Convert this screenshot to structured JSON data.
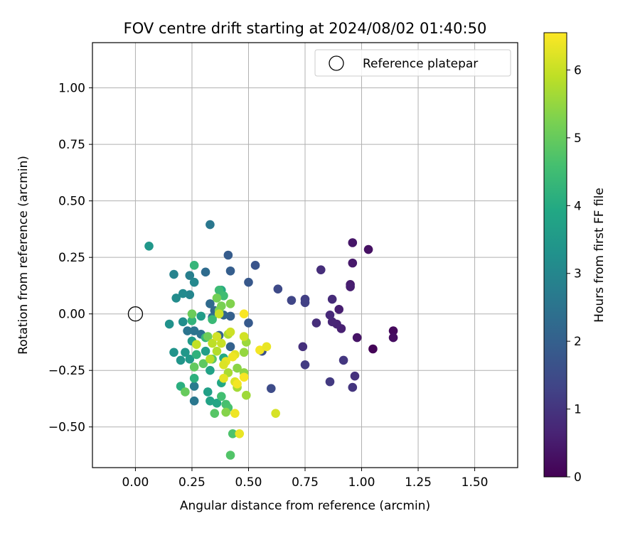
{
  "chart_data": {
    "type": "scatter",
    "title": "FOV centre drift starting at 2024/08/02 01:40:50",
    "xlabel": "Angular distance from reference (arcmin)",
    "ylabel": "Rotation from reference (arcmin)",
    "xlim": [
      -0.19,
      1.69
    ],
    "ylim": [
      -0.68,
      1.2
    ],
    "xticks": [
      0.0,
      0.25,
      0.5,
      0.75,
      1.0,
      1.25,
      1.5
    ],
    "xtick_labels": [
      "0.00",
      "0.25",
      "0.50",
      "0.75",
      "1.00",
      "1.25",
      "1.50"
    ],
    "yticks": [
      -0.5,
      -0.25,
      0.0,
      0.25,
      0.5,
      0.75,
      1.0
    ],
    "ytick_labels": [
      "−0.50",
      "−0.25",
      "0.00",
      "0.25",
      "0.50",
      "0.75",
      "1.00"
    ],
    "grid": true,
    "colormap": "viridis",
    "colorbar": {
      "label": "Hours from first FF file",
      "range": [
        0,
        6.55
      ],
      "ticks": [
        0,
        1,
        2,
        3,
        4,
        5,
        6
      ],
      "tick_labels": [
        "0",
        "1",
        "2",
        "3",
        "4",
        "5",
        "6"
      ]
    },
    "legend": {
      "position": "top-right",
      "entries": [
        {
          "label": "Reference platepar",
          "marker": "open-circle"
        }
      ]
    },
    "reference_point": {
      "x": 0.0,
      "y": 0.0
    },
    "points": [
      {
        "x": 1.05,
        "y": -0.155,
        "c": 0.05
      },
      {
        "x": 1.14,
        "y": -0.075,
        "c": 0.15
      },
      {
        "x": 1.14,
        "y": -0.105,
        "c": 0.25
      },
      {
        "x": 1.03,
        "y": 0.285,
        "c": 0.3
      },
      {
        "x": 0.98,
        "y": -0.105,
        "c": 0.35
      },
      {
        "x": 0.96,
        "y": 0.315,
        "c": 0.4
      },
      {
        "x": 0.96,
        "y": 0.225,
        "c": 0.45
      },
      {
        "x": 0.95,
        "y": 0.13,
        "c": 0.5
      },
      {
        "x": 0.95,
        "y": 0.12,
        "c": 0.55
      },
      {
        "x": 0.9,
        "y": 0.02,
        "c": 0.55
      },
      {
        "x": 0.91,
        "y": -0.065,
        "c": 0.6
      },
      {
        "x": 0.89,
        "y": -0.045,
        "c": 0.65
      },
      {
        "x": 0.87,
        "y": -0.035,
        "c": 0.7
      },
      {
        "x": 0.86,
        "y": -0.005,
        "c": 0.75
      },
      {
        "x": 0.87,
        "y": 0.065,
        "c": 0.8
      },
      {
        "x": 0.82,
        "y": 0.195,
        "c": 0.85
      },
      {
        "x": 0.8,
        "y": -0.04,
        "c": 0.85
      },
      {
        "x": 0.74,
        "y": -0.145,
        "c": 0.9
      },
      {
        "x": 0.97,
        "y": -0.275,
        "c": 0.95
      },
      {
        "x": 0.96,
        "y": -0.325,
        "c": 1.0
      },
      {
        "x": 0.92,
        "y": -0.205,
        "c": 1.05
      },
      {
        "x": 0.86,
        "y": -0.3,
        "c": 1.1
      },
      {
        "x": 0.75,
        "y": -0.225,
        "c": 1.15
      },
      {
        "x": 0.75,
        "y": 0.065,
        "c": 1.2
      },
      {
        "x": 0.75,
        "y": 0.05,
        "c": 1.25
      },
      {
        "x": 0.69,
        "y": 0.06,
        "c": 1.35
      },
      {
        "x": 0.63,
        "y": 0.11,
        "c": 1.45
      },
      {
        "x": 0.6,
        "y": -0.33,
        "c": 1.5
      },
      {
        "x": 0.56,
        "y": -0.165,
        "c": 1.6
      },
      {
        "x": 0.53,
        "y": 0.215,
        "c": 1.7
      },
      {
        "x": 0.5,
        "y": 0.14,
        "c": 1.8
      },
      {
        "x": 0.5,
        "y": -0.04,
        "c": 1.85
      },
      {
        "x": 0.41,
        "y": 0.26,
        "c": 1.9
      },
      {
        "x": 0.42,
        "y": 0.19,
        "c": 1.95
      },
      {
        "x": 0.42,
        "y": -0.01,
        "c": 2.0
      },
      {
        "x": 0.42,
        "y": -0.145,
        "c": 2.05
      },
      {
        "x": 0.37,
        "y": -0.095,
        "c": 2.1
      },
      {
        "x": 0.39,
        "y": -0.005,
        "c": 2.15
      },
      {
        "x": 0.35,
        "y": 0.015,
        "c": 2.2
      },
      {
        "x": 0.33,
        "y": 0.045,
        "c": 2.25
      },
      {
        "x": 0.31,
        "y": 0.185,
        "c": 2.3
      },
      {
        "x": 0.33,
        "y": 0.395,
        "c": 2.6
      },
      {
        "x": 0.34,
        "y": -0.015,
        "c": 2.4
      },
      {
        "x": 0.29,
        "y": -0.09,
        "c": 2.45
      },
      {
        "x": 0.26,
        "y": -0.075,
        "c": 2.5
      },
      {
        "x": 0.23,
        "y": -0.075,
        "c": 2.55
      },
      {
        "x": 0.26,
        "y": -0.385,
        "c": 2.6
      },
      {
        "x": 0.26,
        "y": -0.32,
        "c": 2.7
      },
      {
        "x": 0.24,
        "y": 0.17,
        "c": 2.8
      },
      {
        "x": 0.17,
        "y": 0.175,
        "c": 2.9
      },
      {
        "x": 0.24,
        "y": 0.085,
        "c": 2.95
      },
      {
        "x": 0.26,
        "y": 0.14,
        "c": 3.05
      },
      {
        "x": 0.21,
        "y": 0.09,
        "c": 3.1
      },
      {
        "x": 0.18,
        "y": 0.07,
        "c": 3.15
      },
      {
        "x": 0.21,
        "y": -0.035,
        "c": 3.2
      },
      {
        "x": 0.15,
        "y": -0.045,
        "c": 3.3
      },
      {
        "x": 0.17,
        "y": -0.17,
        "c": 3.35
      },
      {
        "x": 0.2,
        "y": -0.205,
        "c": 3.4
      },
      {
        "x": 0.22,
        "y": -0.17,
        "c": 3.45
      },
      {
        "x": 0.24,
        "y": -0.2,
        "c": 3.5
      },
      {
        "x": 0.25,
        "y": -0.12,
        "c": 3.55
      },
      {
        "x": 0.29,
        "y": -0.01,
        "c": 3.6
      },
      {
        "x": 0.31,
        "y": -0.165,
        "c": 3.65
      },
      {
        "x": 0.32,
        "y": -0.345,
        "c": 3.7
      },
      {
        "x": 0.33,
        "y": -0.25,
        "c": 3.75
      },
      {
        "x": 0.33,
        "y": -0.385,
        "c": 3.8
      },
      {
        "x": 0.36,
        "y": -0.395,
        "c": 3.85
      },
      {
        "x": 0.38,
        "y": -0.305,
        "c": 3.9
      },
      {
        "x": 0.39,
        "y": -0.195,
        "c": 3.95
      },
      {
        "x": 0.38,
        "y": 0.105,
        "c": 4.0
      },
      {
        "x": 0.06,
        "y": 0.3,
        "c": 3.45
      },
      {
        "x": 0.2,
        "y": -0.32,
        "c": 4.1
      },
      {
        "x": 0.26,
        "y": -0.285,
        "c": 4.15
      },
      {
        "x": 0.27,
        "y": -0.18,
        "c": 4.2
      },
      {
        "x": 0.25,
        "y": -0.03,
        "c": 4.25
      },
      {
        "x": 0.26,
        "y": 0.215,
        "c": 4.3
      },
      {
        "x": 0.31,
        "y": -0.105,
        "c": 4.35
      },
      {
        "x": 0.34,
        "y": -0.025,
        "c": 4.4
      },
      {
        "x": 0.37,
        "y": 0.105,
        "c": 4.45
      },
      {
        "x": 0.39,
        "y": 0.08,
        "c": 4.5
      },
      {
        "x": 0.38,
        "y": -0.365,
        "c": 4.55
      },
      {
        "x": 0.4,
        "y": -0.4,
        "c": 4.6
      },
      {
        "x": 0.41,
        "y": -0.415,
        "c": 4.65
      },
      {
        "x": 0.43,
        "y": -0.53,
        "c": 4.7
      },
      {
        "x": 0.42,
        "y": -0.625,
        "c": 4.75
      },
      {
        "x": 0.35,
        "y": -0.44,
        "c": 4.8
      },
      {
        "x": 0.34,
        "y": -0.2,
        "c": 4.85
      },
      {
        "x": 0.3,
        "y": -0.22,
        "c": 4.9
      },
      {
        "x": 0.26,
        "y": -0.235,
        "c": 4.95
      },
      {
        "x": 0.22,
        "y": -0.345,
        "c": 5.0
      },
      {
        "x": 0.25,
        "y": 0.0,
        "c": 5.05
      },
      {
        "x": 0.32,
        "y": -0.1,
        "c": 5.1
      },
      {
        "x": 0.36,
        "y": 0.07,
        "c": 5.15
      },
      {
        "x": 0.38,
        "y": 0.035,
        "c": 5.2
      },
      {
        "x": 0.37,
        "y": 0.015,
        "c": 5.25
      },
      {
        "x": 0.42,
        "y": 0.045,
        "c": 5.3
      },
      {
        "x": 0.4,
        "y": -0.435,
        "c": 5.35
      },
      {
        "x": 0.45,
        "y": -0.24,
        "c": 5.4
      },
      {
        "x": 0.48,
        "y": -0.26,
        "c": 5.45
      },
      {
        "x": 0.48,
        "y": -0.17,
        "c": 5.5
      },
      {
        "x": 0.49,
        "y": -0.125,
        "c": 5.55
      },
      {
        "x": 0.49,
        "y": -0.36,
        "c": 5.6
      },
      {
        "x": 0.45,
        "y": -0.325,
        "c": 5.65
      },
      {
        "x": 0.41,
        "y": -0.26,
        "c": 5.7
      },
      {
        "x": 0.41,
        "y": -0.09,
        "c": 5.75
      },
      {
        "x": 0.36,
        "y": -0.165,
        "c": 5.8
      },
      {
        "x": 0.33,
        "y": -0.2,
        "c": 5.85
      },
      {
        "x": 0.34,
        "y": -0.13,
        "c": 5.9
      },
      {
        "x": 0.27,
        "y": -0.135,
        "c": 5.95
      },
      {
        "x": 0.38,
        "y": -0.13,
        "c": 6.0
      },
      {
        "x": 0.42,
        "y": -0.08,
        "c": 6.05
      },
      {
        "x": 0.48,
        "y": -0.1,
        "c": 6.1
      },
      {
        "x": 0.62,
        "y": -0.44,
        "c": 6.15
      },
      {
        "x": 0.44,
        "y": -0.3,
        "c": 6.2
      },
      {
        "x": 0.44,
        "y": -0.18,
        "c": 6.25
      },
      {
        "x": 0.4,
        "y": -0.21,
        "c": 6.3
      },
      {
        "x": 0.46,
        "y": -0.53,
        "c": 6.35
      },
      {
        "x": 0.44,
        "y": -0.44,
        "c": 6.4
      },
      {
        "x": 0.45,
        "y": -0.31,
        "c": 6.45
      },
      {
        "x": 0.48,
        "y": -0.28,
        "c": 6.5
      },
      {
        "x": 0.48,
        "y": 0.0,
        "c": 6.5
      },
      {
        "x": 0.55,
        "y": -0.16,
        "c": 6.45
      },
      {
        "x": 0.58,
        "y": -0.145,
        "c": 6.35
      },
      {
        "x": 0.39,
        "y": -0.225,
        "c": 6.2
      },
      {
        "x": 0.39,
        "y": -0.285,
        "c": 6.3
      },
      {
        "x": 0.43,
        "y": -0.19,
        "c": 6.4
      },
      {
        "x": 0.36,
        "y": -0.1,
        "c": 6.1
      },
      {
        "x": 0.37,
        "y": 0.0,
        "c": 6.0
      }
    ]
  }
}
